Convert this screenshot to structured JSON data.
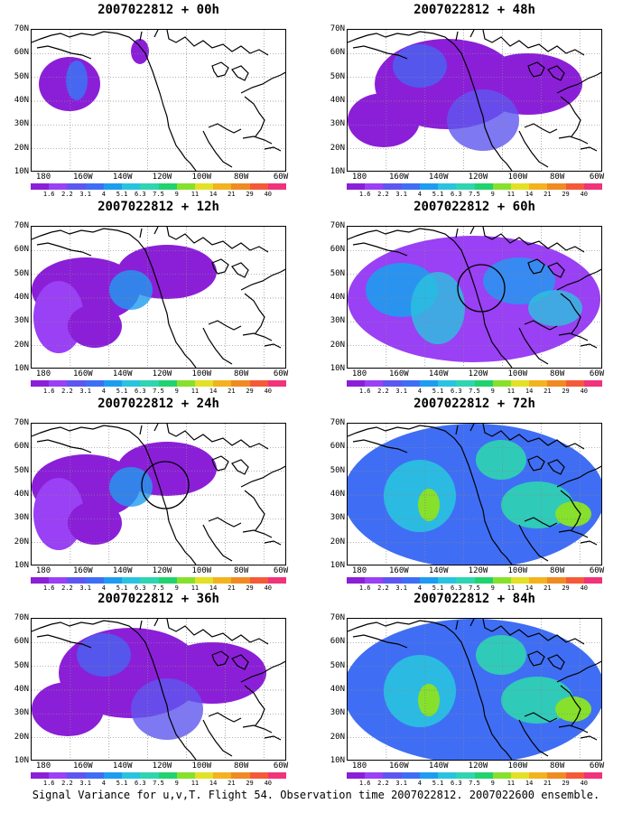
{
  "lat_labels": [
    "70N",
    "60N",
    "50N",
    "40N",
    "30N",
    "20N",
    "10N"
  ],
  "lon_labels": [
    "180",
    "160W",
    "140W",
    "120W",
    "100W",
    "80W",
    "60W"
  ],
  "colorbar": {
    "colors": [
      "#8b1fd8",
      "#9a40f5",
      "#5e56f0",
      "#3f6ef5",
      "#1e9cf0",
      "#29c3e0",
      "#2fd4b1",
      "#21d36e",
      "#86e02c",
      "#e3e025",
      "#f3b21f",
      "#f08a23",
      "#f45a39",
      "#f0337b"
    ],
    "labels": [
      "1.6",
      "2.2",
      "3.1",
      "4",
      "5.1",
      "6.3",
      "7.5",
      "9",
      "11",
      "14",
      "21",
      "29",
      "40"
    ]
  },
  "panels": [
    {
      "title": "2007022812 + 00h",
      "level": 0,
      "circle": false
    },
    {
      "title": "2007022812 + 48h",
      "level": 2,
      "circle": false
    },
    {
      "title": "2007022812 + 12h",
      "level": 1,
      "circle": false
    },
    {
      "title": "2007022812 + 60h",
      "level": 3,
      "circle": true
    },
    {
      "title": "2007022812 + 24h",
      "level": 1,
      "circle": true
    },
    {
      "title": "2007022812 + 72h",
      "level": 4,
      "circle": false
    },
    {
      "title": "2007022812 + 36h",
      "level": 2,
      "circle": false
    },
    {
      "title": "2007022812 + 84h",
      "level": 4,
      "circle": false
    }
  ],
  "footer": "Signal Variance for u,v,T. Flight 54. Observation time 2007022812. 2007022600 ensemble."
}
